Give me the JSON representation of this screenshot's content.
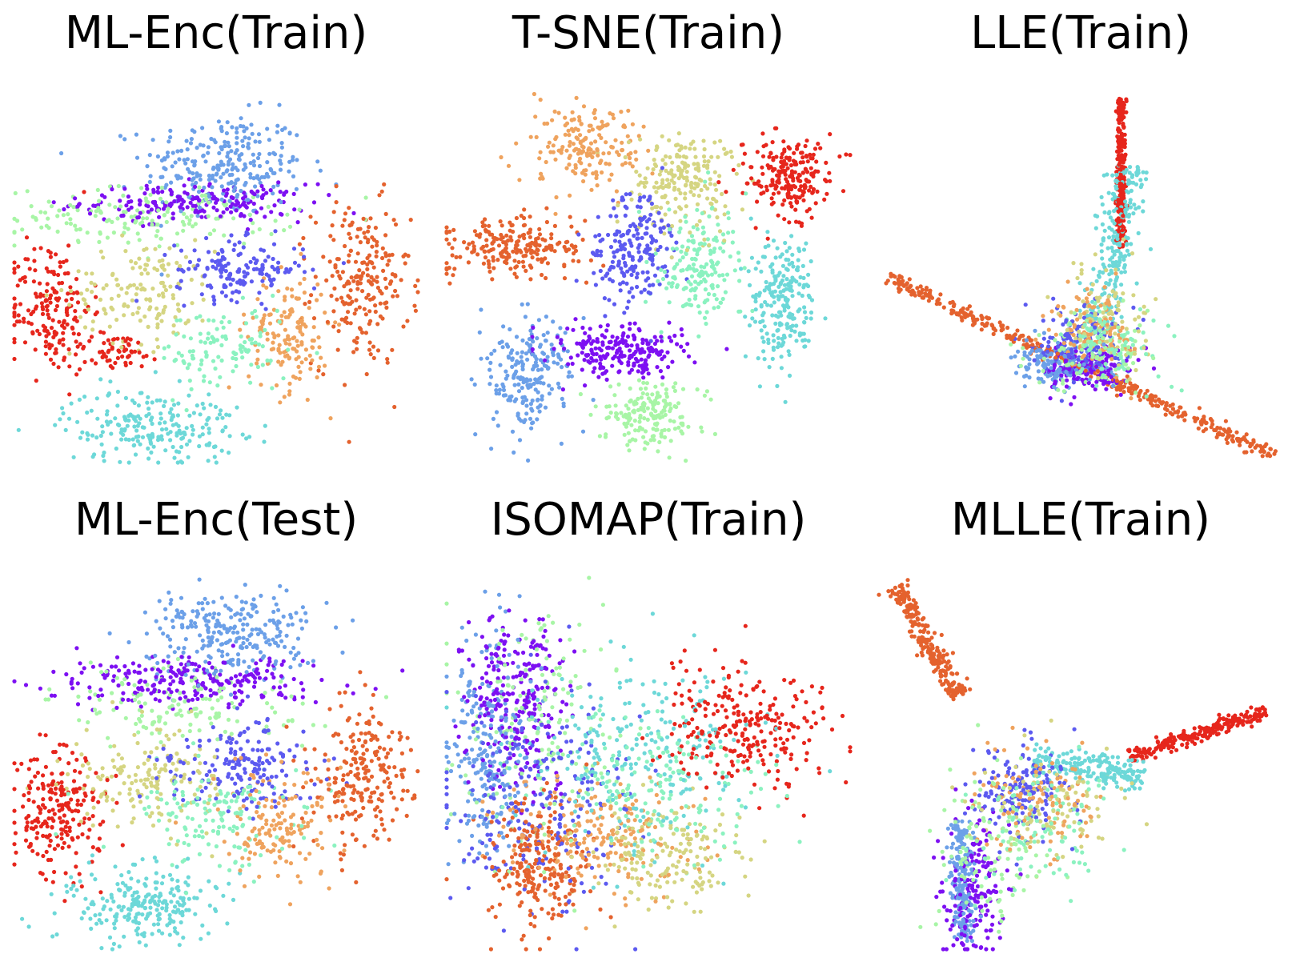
{
  "chart_data": [
    {
      "type": "scatter",
      "title": "ML-Enc(Train)",
      "axes_visible": false,
      "legend": "none",
      "xlim": [
        0,
        1
      ],
      "ylim": [
        0,
        1
      ],
      "series": [
        {
          "color": "#6ca0e8",
          "clusters": [
            {
              "x": 0.52,
              "y": 0.8,
              "sx": 0.1,
              "sy": 0.07,
              "n": 260
            }
          ]
        },
        {
          "color": "#7d10f2",
          "clusters": [
            {
              "x": 0.45,
              "y": 0.7,
              "sx": 0.14,
              "sy": 0.025,
              "n": 200
            }
          ]
        },
        {
          "color": "#a8f5a6",
          "clusters": [
            {
              "x": 0.33,
              "y": 0.66,
              "sx": 0.18,
              "sy": 0.04,
              "n": 160
            }
          ]
        },
        {
          "color": "#e4622e",
          "clusters": [
            {
              "x": 0.86,
              "y": 0.48,
              "sx": 0.06,
              "sy": 0.11,
              "n": 220
            }
          ]
        },
        {
          "color": "#e6261c",
          "clusters": [
            {
              "x": 0.09,
              "y": 0.42,
              "sx": 0.05,
              "sy": 0.09,
              "n": 180
            },
            {
              "x": 0.25,
              "y": 0.3,
              "sx": 0.06,
              "sy": 0.025,
              "n": 60
            }
          ]
        },
        {
          "color": "#d5d582",
          "clusters": [
            {
              "x": 0.32,
              "y": 0.46,
              "sx": 0.09,
              "sy": 0.07,
              "n": 150
            }
          ]
        },
        {
          "color": "#5c5af0",
          "clusters": [
            {
              "x": 0.56,
              "y": 0.52,
              "sx": 0.08,
              "sy": 0.04,
              "n": 150
            }
          ]
        },
        {
          "color": "#efa35e",
          "clusters": [
            {
              "x": 0.68,
              "y": 0.35,
              "sx": 0.05,
              "sy": 0.08,
              "n": 150
            }
          ]
        },
        {
          "color": "#8bf2c0",
          "clusters": [
            {
              "x": 0.52,
              "y": 0.3,
              "sx": 0.08,
              "sy": 0.06,
              "n": 110
            }
          ]
        },
        {
          "color": "#6dd8d8",
          "clusters": [
            {
              "x": 0.34,
              "y": 0.1,
              "sx": 0.11,
              "sy": 0.05,
              "n": 220
            }
          ]
        }
      ]
    },
    {
      "type": "scatter",
      "title": "T-SNE(Train)",
      "axes_visible": false,
      "legend": "none",
      "xlim": [
        0,
        1
      ],
      "ylim": [
        0,
        1
      ],
      "series": [
        {
          "color": "#efa35e",
          "clusters": [
            {
              "x": 0.34,
              "y": 0.85,
              "sx": 0.06,
              "sy": 0.06,
              "n": 180
            }
          ]
        },
        {
          "color": "#d5d582",
          "clusters": [
            {
              "x": 0.58,
              "y": 0.76,
              "sx": 0.06,
              "sy": 0.07,
              "n": 200
            }
          ]
        },
        {
          "color": "#e6261c",
          "clusters": [
            {
              "x": 0.85,
              "y": 0.77,
              "sx": 0.05,
              "sy": 0.05,
              "n": 220
            }
          ]
        },
        {
          "color": "#e4622e",
          "clusters": [
            {
              "x": 0.17,
              "y": 0.58,
              "sx": 0.09,
              "sy": 0.04,
              "n": 220
            }
          ]
        },
        {
          "color": "#5c5af0",
          "clusters": [
            {
              "x": 0.46,
              "y": 0.58,
              "sx": 0.05,
              "sy": 0.07,
              "n": 200
            }
          ]
        },
        {
          "color": "#8bf2c0",
          "clusters": [
            {
              "x": 0.62,
              "y": 0.52,
              "sx": 0.05,
              "sy": 0.08,
              "n": 180
            }
          ]
        },
        {
          "color": "#6dd8d8",
          "clusters": [
            {
              "x": 0.83,
              "y": 0.44,
              "sx": 0.04,
              "sy": 0.09,
              "n": 220
            }
          ]
        },
        {
          "color": "#6ca0e8",
          "clusters": [
            {
              "x": 0.21,
              "y": 0.24,
              "sx": 0.05,
              "sy": 0.08,
              "n": 220
            }
          ]
        },
        {
          "color": "#7d10f2",
          "clusters": [
            {
              "x": 0.43,
              "y": 0.3,
              "sx": 0.08,
              "sy": 0.035,
              "n": 220
            }
          ]
        },
        {
          "color": "#a8f5a6",
          "clusters": [
            {
              "x": 0.5,
              "y": 0.13,
              "sx": 0.06,
              "sy": 0.04,
              "n": 180
            }
          ]
        }
      ]
    },
    {
      "type": "scatter",
      "title": "LLE(Train)",
      "axes_visible": false,
      "legend": "none",
      "xlim": [
        0,
        1
      ],
      "ylim": [
        0,
        1
      ],
      "series": [
        {
          "color": "#e4622e",
          "clusters": [
            {
              "line": [
                [
                  0.02,
                  0.5
                ],
                [
                  0.98,
                  0.02
                ]
              ],
              "spread": 0.01,
              "n": 420
            }
          ]
        },
        {
          "color": "#e6261c",
          "clusters": [
            {
              "line": [
                [
                  0.6,
                  0.98
                ],
                [
                  0.6,
                  0.58
                ]
              ],
              "spread": 0.006,
              "n": 260
            }
          ]
        },
        {
          "color": "#6dd8d8",
          "clusters": [
            {
              "line": [
                [
                  0.62,
                  0.8
                ],
                [
                  0.55,
                  0.35
                ]
              ],
              "spread": 0.025,
              "n": 240
            }
          ]
        },
        {
          "color": "#6ca0e8",
          "clusters": [
            {
              "x": 0.46,
              "y": 0.26,
              "sx": 0.06,
              "sy": 0.03,
              "n": 180
            }
          ]
        },
        {
          "color": "#7d10f2",
          "clusters": [
            {
              "x": 0.52,
              "y": 0.25,
              "sx": 0.05,
              "sy": 0.03,
              "n": 150
            }
          ]
        },
        {
          "color": "#5c5af0",
          "clusters": [
            {
              "x": 0.5,
              "y": 0.33,
              "sx": 0.05,
              "sy": 0.05,
              "n": 150
            }
          ]
        },
        {
          "color": "#d5d582",
          "clusters": [
            {
              "x": 0.56,
              "y": 0.38,
              "sx": 0.05,
              "sy": 0.07,
              "n": 110
            }
          ]
        },
        {
          "color": "#efa35e",
          "clusters": [
            {
              "x": 0.53,
              "y": 0.36,
              "sx": 0.05,
              "sy": 0.06,
              "n": 110
            }
          ]
        },
        {
          "color": "#a8f5a6",
          "clusters": [
            {
              "x": 0.54,
              "y": 0.3,
              "sx": 0.08,
              "sy": 0.05,
              "n": 90
            }
          ]
        },
        {
          "color": "#8bf2c0",
          "clusters": [
            {
              "x": 0.58,
              "y": 0.32,
              "sx": 0.07,
              "sy": 0.05,
              "n": 90
            }
          ]
        }
      ]
    },
    {
      "type": "scatter",
      "title": "ML-Enc(Test)",
      "axes_visible": false,
      "legend": "none",
      "xlim": [
        0,
        1
      ],
      "ylim": [
        0,
        1
      ],
      "series": [
        {
          "color": "#6ca0e8",
          "clusters": [
            {
              "x": 0.52,
              "y": 0.86,
              "sx": 0.1,
              "sy": 0.06,
              "n": 260
            }
          ]
        },
        {
          "color": "#7d10f2",
          "clusters": [
            {
              "x": 0.46,
              "y": 0.72,
              "sx": 0.16,
              "sy": 0.035,
              "n": 240
            }
          ]
        },
        {
          "color": "#a8f5a6",
          "clusters": [
            {
              "x": 0.4,
              "y": 0.66,
              "sx": 0.16,
              "sy": 0.05,
              "n": 140
            }
          ]
        },
        {
          "color": "#e4622e",
          "clusters": [
            {
              "x": 0.86,
              "y": 0.46,
              "sx": 0.06,
              "sy": 0.1,
              "n": 220
            }
          ]
        },
        {
          "color": "#e6261c",
          "clusters": [
            {
              "x": 0.11,
              "y": 0.38,
              "sx": 0.06,
              "sy": 0.08,
              "n": 220
            }
          ]
        },
        {
          "color": "#d5d582",
          "clusters": [
            {
              "x": 0.34,
              "y": 0.46,
              "sx": 0.1,
              "sy": 0.07,
              "n": 160
            }
          ]
        },
        {
          "color": "#5c5af0",
          "clusters": [
            {
              "x": 0.56,
              "y": 0.5,
              "sx": 0.09,
              "sy": 0.06,
              "n": 180
            }
          ]
        },
        {
          "color": "#efa35e",
          "clusters": [
            {
              "x": 0.66,
              "y": 0.34,
              "sx": 0.07,
              "sy": 0.07,
              "n": 150
            }
          ]
        },
        {
          "color": "#8bf2c0",
          "clusters": [
            {
              "x": 0.5,
              "y": 0.36,
              "sx": 0.1,
              "sy": 0.07,
              "n": 140
            }
          ]
        },
        {
          "color": "#6dd8d8",
          "clusters": [
            {
              "x": 0.32,
              "y": 0.12,
              "sx": 0.1,
              "sy": 0.05,
              "n": 240
            }
          ]
        }
      ]
    },
    {
      "type": "scatter",
      "title": "ISOMAP(Train)",
      "axes_visible": false,
      "legend": "none",
      "xlim": [
        0,
        1
      ],
      "ylim": [
        0,
        1
      ],
      "series": [
        {
          "color": "#6ca0e8",
          "clusters": [
            {
              "x": 0.1,
              "y": 0.55,
              "sx": 0.05,
              "sy": 0.15,
              "n": 240
            }
          ]
        },
        {
          "color": "#7d10f2",
          "clusters": [
            {
              "x": 0.18,
              "y": 0.68,
              "sx": 0.06,
              "sy": 0.12,
              "n": 260
            }
          ]
        },
        {
          "color": "#a8f5a6",
          "clusters": [
            {
              "x": 0.24,
              "y": 0.6,
              "sx": 0.1,
              "sy": 0.16,
              "n": 160
            }
          ]
        },
        {
          "color": "#5c5af0",
          "clusters": [
            {
              "x": 0.22,
              "y": 0.38,
              "sx": 0.12,
              "sy": 0.15,
              "n": 240
            }
          ]
        },
        {
          "color": "#e4622e",
          "clusters": [
            {
              "x": 0.22,
              "y": 0.22,
              "sx": 0.06,
              "sy": 0.09,
              "n": 240
            }
          ]
        },
        {
          "color": "#efa35e",
          "clusters": [
            {
              "x": 0.38,
              "y": 0.3,
              "sx": 0.12,
              "sy": 0.08,
              "n": 200
            }
          ]
        },
        {
          "color": "#d5d582",
          "clusters": [
            {
              "x": 0.56,
              "y": 0.24,
              "sx": 0.1,
              "sy": 0.07,
              "n": 170
            }
          ]
        },
        {
          "color": "#6dd8d8",
          "clusters": [
            {
              "x": 0.48,
              "y": 0.52,
              "sx": 0.14,
              "sy": 0.13,
              "n": 240
            }
          ]
        },
        {
          "color": "#8bf2c0",
          "clusters": [
            {
              "x": 0.54,
              "y": 0.44,
              "sx": 0.14,
              "sy": 0.1,
              "n": 150
            }
          ]
        },
        {
          "color": "#e6261c",
          "clusters": [
            {
              "x": 0.74,
              "y": 0.6,
              "sx": 0.11,
              "sy": 0.08,
              "n": 260
            }
          ]
        }
      ]
    },
    {
      "type": "scatter",
      "title": "MLLE(Train)",
      "axes_visible": false,
      "legend": "none",
      "xlim": [
        0,
        1
      ],
      "ylim": [
        0,
        1
      ],
      "series": [
        {
          "color": "#e4622e",
          "clusters": [
            {
              "line": [
                [
                  0.04,
                  0.98
                ],
                [
                  0.2,
                  0.68
                ]
              ],
              "spread": 0.014,
              "n": 240
            }
          ]
        },
        {
          "color": "#e6261c",
          "clusters": [
            {
              "line": [
                [
                  0.62,
                  0.52
                ],
                [
                  0.96,
                  0.64
                ]
              ],
              "spread": 0.01,
              "n": 240
            }
          ]
        },
        {
          "color": "#6dd8d8",
          "clusters": [
            {
              "line": [
                [
                  0.38,
                  0.5
                ],
                [
                  0.66,
                  0.47
                ]
              ],
              "spread": 0.022,
              "n": 200
            }
          ]
        },
        {
          "color": "#6ca0e8",
          "clusters": [
            {
              "line": [
                [
                  0.2,
                  0.35
                ],
                [
                  0.21,
                  0.02
                ]
              ],
              "spread": 0.015,
              "n": 200
            }
          ]
        },
        {
          "color": "#7d10f2",
          "clusters": [
            {
              "x": 0.24,
              "y": 0.18,
              "sx": 0.04,
              "sy": 0.1,
              "n": 180
            }
          ]
        },
        {
          "color": "#5c5af0",
          "clusters": [
            {
              "x": 0.36,
              "y": 0.44,
              "sx": 0.06,
              "sy": 0.07,
              "n": 160
            }
          ]
        },
        {
          "color": "#d5d582",
          "clusters": [
            {
              "x": 0.42,
              "y": 0.38,
              "sx": 0.08,
              "sy": 0.07,
              "n": 110
            }
          ]
        },
        {
          "color": "#efa35e",
          "clusters": [
            {
              "x": 0.38,
              "y": 0.4,
              "sx": 0.07,
              "sy": 0.07,
              "n": 110
            }
          ]
        },
        {
          "color": "#a8f5a6",
          "clusters": [
            {
              "x": 0.28,
              "y": 0.26,
              "sx": 0.07,
              "sy": 0.1,
              "n": 110
            }
          ]
        },
        {
          "color": "#8bf2c0",
          "clusters": [
            {
              "x": 0.4,
              "y": 0.32,
              "sx": 0.09,
              "sy": 0.08,
              "n": 90
            }
          ]
        }
      ]
    }
  ]
}
